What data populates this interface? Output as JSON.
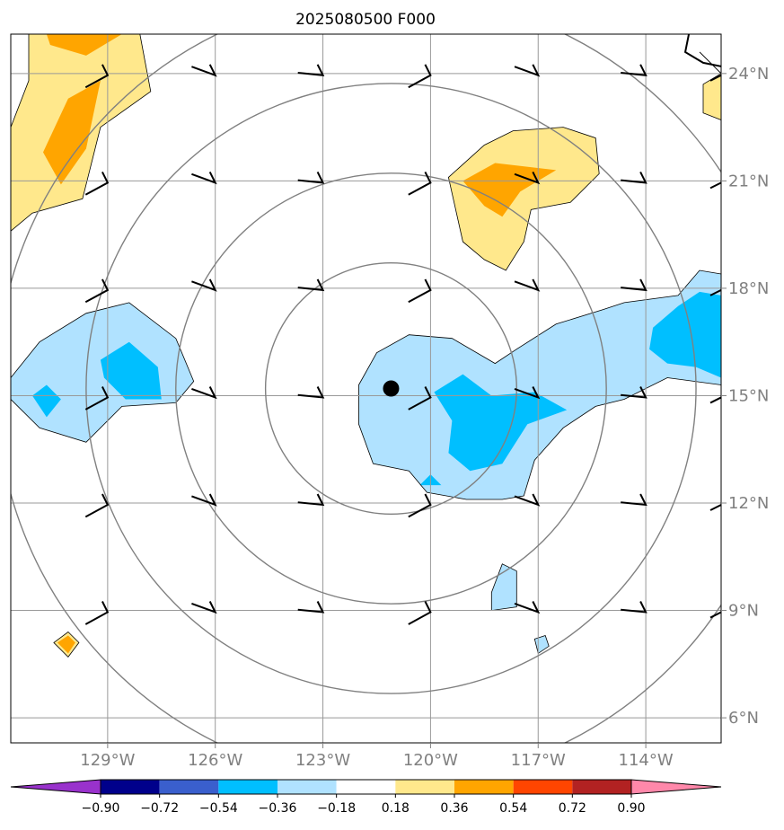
{
  "chart_data": {
    "type": "heatmap",
    "title": "2025080500 F000",
    "xlabel": "",
    "ylabel": "",
    "xlim": [
      -131.7,
      -111.9
    ],
    "ylim": [
      5.3,
      25.1
    ],
    "x_ticks": [
      -129,
      -126,
      -123,
      -120,
      -117,
      -114
    ],
    "x_tick_labels": [
      "129°W",
      "126°W",
      "123°W",
      "120°W",
      "117°W",
      "114°W"
    ],
    "y_ticks": [
      6,
      9,
      12,
      15,
      18,
      21,
      24
    ],
    "y_tick_labels": [
      "6°N",
      "9°N",
      "12°N",
      "15°N",
      "18°N",
      "21°N",
      "24°N"
    ],
    "grid": true,
    "center_marker": {
      "lon": -121.1,
      "lat": 15.2
    },
    "range_rings_deg": [
      3.5,
      6.0,
      8.5,
      11.0
    ],
    "colorbar": {
      "ticks": [
        "−0.90",
        "−0.72",
        "−0.54",
        "−0.36",
        "−0.18",
        "0.18",
        "0.36",
        "0.54",
        "0.72",
        "0.90"
      ],
      "colors": [
        "#9932cc",
        "#00008b",
        "#3a5fcd",
        "#00bfff",
        "#b0e2ff",
        "#ffffff",
        "#ffe88c",
        "#ffa500",
        "#ff4500",
        "#b22222",
        "#ff88aa"
      ]
    },
    "contour_fill_regions": [
      {
        "level": "0.18 to 0.36",
        "color": "#ffe88c",
        "polygon": [
          [
            -131.7,
            19.6
          ],
          [
            -131.7,
            22.5
          ],
          [
            -131.2,
            23.8
          ],
          [
            -131.2,
            25.1
          ],
          [
            -128.1,
            25.1
          ],
          [
            -127.8,
            23.5
          ],
          [
            -129.2,
            22.5
          ],
          [
            -129.7,
            20.5
          ],
          [
            -131.1,
            20.1
          ]
        ]
      },
      {
        "level": "0.36 to 0.54",
        "color": "#ffa500",
        "polygon": [
          [
            -130.8,
            21.8
          ],
          [
            -130.1,
            23.3
          ],
          [
            -129.2,
            23.8
          ],
          [
            -129.6,
            21.9
          ],
          [
            -130.3,
            20.9
          ]
        ]
      },
      {
        "level": "0.36 to 0.54",
        "color": "#ffa500",
        "polygon": [
          [
            -130.7,
            25.1
          ],
          [
            -128.6,
            25.1
          ],
          [
            -129.6,
            24.5
          ],
          [
            -130.6,
            24.8
          ]
        ]
      },
      {
        "level": "0.18 to 0.36",
        "color": "#ffe88c",
        "polygon": [
          [
            -118.5,
            22.0
          ],
          [
            -117.7,
            22.4
          ],
          [
            -116.3,
            22.5
          ],
          [
            -115.4,
            22.2
          ],
          [
            -115.3,
            21.2
          ],
          [
            -116.1,
            20.4
          ],
          [
            -117.2,
            20.2
          ],
          [
            -117.4,
            19.3
          ],
          [
            -117.9,
            18.5
          ],
          [
            -118.5,
            18.8
          ],
          [
            -119.1,
            19.3
          ],
          [
            -119.5,
            21.1
          ]
        ]
      },
      {
        "level": "0.36 to 0.54",
        "color": "#ffa500",
        "polygon": [
          [
            -119.1,
            21.0
          ],
          [
            -118.2,
            21.5
          ],
          [
            -116.5,
            21.3
          ],
          [
            -117.5,
            20.7
          ],
          [
            -118.0,
            20.0
          ],
          [
            -118.5,
            20.3
          ]
        ]
      },
      {
        "level": "0.18 to 0.36",
        "color": "#ffe88c",
        "polygon": [
          [
            -112.4,
            23.7
          ],
          [
            -111.9,
            24.0
          ],
          [
            -111.9,
            22.7
          ],
          [
            -112.4,
            22.9
          ]
        ]
      },
      {
        "level": "0.18 to 0.36",
        "color": "#ffe88c",
        "polygon": [
          [
            -130.5,
            8.1
          ],
          [
            -130.1,
            8.4
          ],
          [
            -129.8,
            8.1
          ],
          [
            -130.1,
            7.7
          ]
        ]
      },
      {
        "level": "0.36 to 0.54",
        "color": "#ffa500",
        "polygon": [
          [
            -130.4,
            8.1
          ],
          [
            -130.1,
            8.3
          ],
          [
            -129.9,
            8.1
          ],
          [
            -130.1,
            7.8
          ]
        ]
      },
      {
        "level": "-0.36 to -0.18",
        "color": "#b0e2ff",
        "polygon": [
          [
            -131.7,
            15.5
          ],
          [
            -130.9,
            16.5
          ],
          [
            -129.6,
            17.3
          ],
          [
            -128.4,
            17.6
          ],
          [
            -127.1,
            16.6
          ],
          [
            -126.6,
            15.4
          ],
          [
            -127.1,
            14.8
          ],
          [
            -128.6,
            14.7
          ],
          [
            -129.6,
            13.7
          ],
          [
            -130.9,
            14.1
          ],
          [
            -131.7,
            14.9
          ]
        ]
      },
      {
        "level": "-0.54 to -0.36",
        "color": "#00bfff",
        "polygon": [
          [
            -129.2,
            16.0
          ],
          [
            -128.4,
            16.5
          ],
          [
            -127.6,
            15.8
          ],
          [
            -127.5,
            14.9
          ],
          [
            -128.5,
            14.9
          ],
          [
            -129.1,
            15.5
          ]
        ]
      },
      {
        "level": "-0.54 to -0.36",
        "color": "#00bfff",
        "polygon": [
          [
            -131.1,
            15.0
          ],
          [
            -130.7,
            15.3
          ],
          [
            -130.3,
            14.9
          ],
          [
            -130.7,
            14.4
          ]
        ]
      },
      {
        "level": "-0.36 to -0.18",
        "color": "#b0e2ff",
        "polygon": [
          [
            -122.0,
            15.3
          ],
          [
            -121.5,
            16.2
          ],
          [
            -120.6,
            16.7
          ],
          [
            -119.4,
            16.6
          ],
          [
            -118.2,
            15.9
          ],
          [
            -117.6,
            16.3
          ],
          [
            -116.5,
            17.0
          ],
          [
            -115.2,
            17.4
          ],
          [
            -114.6,
            17.6
          ],
          [
            -113.1,
            17.8
          ],
          [
            -112.5,
            18.5
          ],
          [
            -111.9,
            18.4
          ],
          [
            -111.9,
            15.3
          ],
          [
            -113.4,
            15.5
          ],
          [
            -114.6,
            14.9
          ],
          [
            -115.4,
            14.7
          ],
          [
            -116.3,
            14.1
          ],
          [
            -117.1,
            13.2
          ],
          [
            -117.4,
            12.2
          ],
          [
            -118.0,
            12.1
          ],
          [
            -119.0,
            12.1
          ],
          [
            -120.1,
            12.3
          ],
          [
            -120.6,
            12.9
          ],
          [
            -121.6,
            13.1
          ],
          [
            -122.0,
            14.2
          ]
        ]
      },
      {
        "level": "-0.54 to -0.36",
        "color": "#00bfff",
        "polygon": [
          [
            -119.9,
            15.1
          ],
          [
            -119.1,
            15.6
          ],
          [
            -118.3,
            15.0
          ],
          [
            -117.1,
            15.1
          ],
          [
            -116.2,
            14.6
          ],
          [
            -117.3,
            14.2
          ],
          [
            -118.0,
            13.1
          ],
          [
            -118.9,
            12.9
          ],
          [
            -119.5,
            13.4
          ],
          [
            -119.4,
            14.3
          ]
        ]
      },
      {
        "level": "-0.54 to -0.36",
        "color": "#00bfff",
        "polygon": [
          [
            -120.3,
            12.5
          ],
          [
            -120.0,
            12.8
          ],
          [
            -119.7,
            12.5
          ]
        ]
      },
      {
        "level": "-0.54 to -0.36",
        "color": "#00bfff",
        "polygon": [
          [
            -113.8,
            16.9
          ],
          [
            -113.1,
            17.5
          ],
          [
            -112.5,
            17.9
          ],
          [
            -111.9,
            17.8
          ],
          [
            -111.9,
            15.5
          ],
          [
            -112.6,
            15.8
          ],
          [
            -113.4,
            15.9
          ],
          [
            -113.9,
            16.3
          ]
        ]
      },
      {
        "level": "-0.36 to -0.18",
        "color": "#b0e2ff",
        "polygon": [
          [
            -118.3,
            9.5
          ],
          [
            -118.0,
            10.3
          ],
          [
            -117.6,
            10.1
          ],
          [
            -117.6,
            9.1
          ],
          [
            -118.3,
            9.0
          ]
        ]
      },
      {
        "level": "-0.36 to -0.18",
        "color": "#b0e2ff",
        "polygon": [
          [
            -117.1,
            8.2
          ],
          [
            -116.8,
            8.3
          ],
          [
            -116.7,
            8.0
          ],
          [
            -117.0,
            7.8
          ]
        ]
      }
    ]
  }
}
